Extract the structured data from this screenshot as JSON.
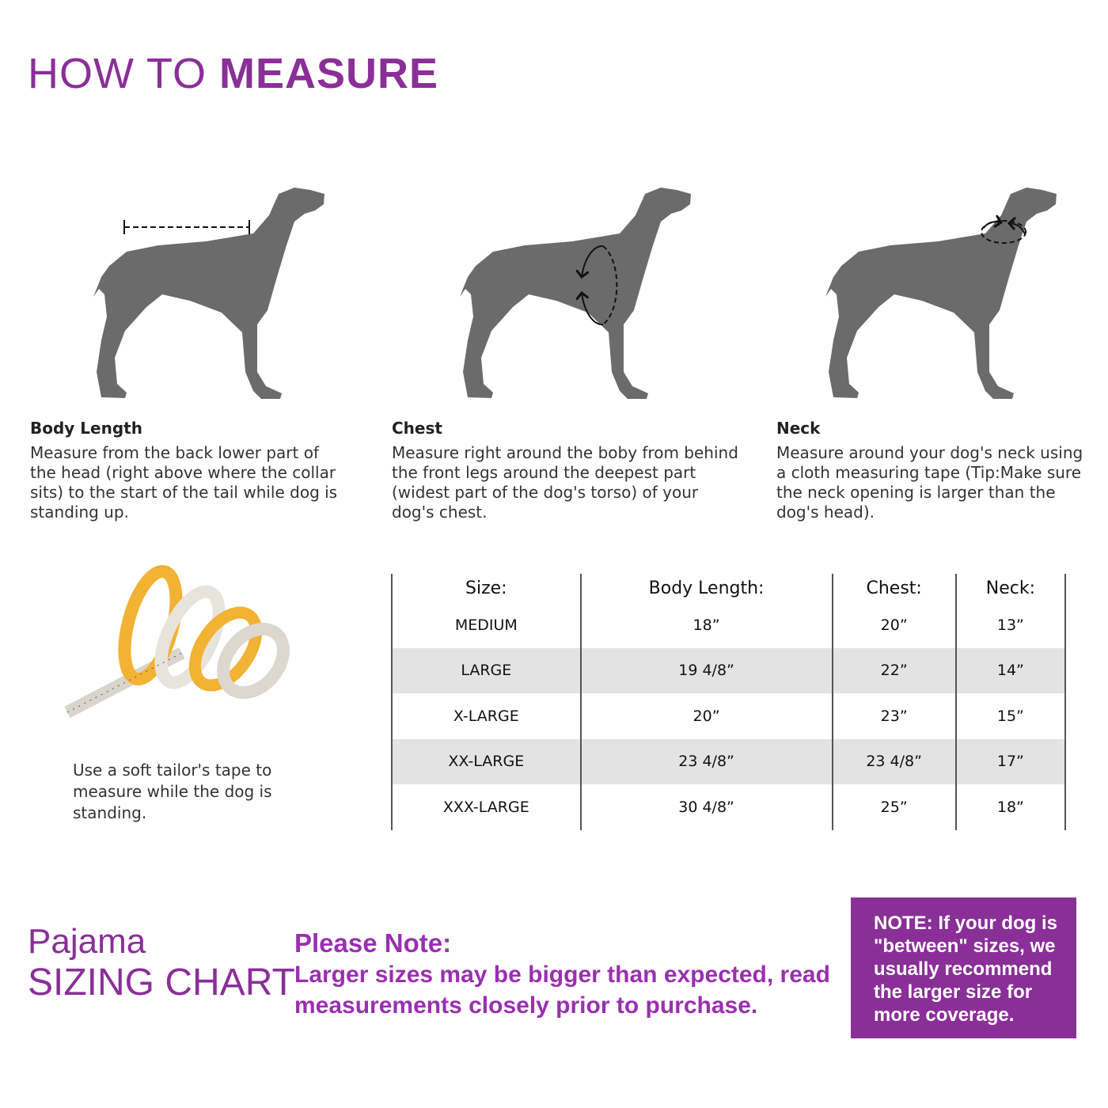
{
  "header": {
    "title_light": "HOW TO ",
    "title_bold": "MEASURE"
  },
  "colors": {
    "brand_purple": "#8a2f98",
    "dog_gray": "#6b6b6b",
    "row_shade": "#e3e3e3"
  },
  "measurements": [
    {
      "label": "Body Length",
      "icon": "dog-body-length-icon",
      "text": "Measure from the back lower part of the head (right above where the collar sits) to the start of the tail while dog is standing up."
    },
    {
      "label": "Chest",
      "icon": "dog-chest-icon",
      "text": "Measure right around the boby from behind the front legs around the deepest part (widest part of the dog's torso) of your dog's chest."
    },
    {
      "label": "Neck",
      "icon": "dog-neck-icon",
      "text": "Measure around your dog's neck using a cloth measuring tape (Tip:Make sure the neck opening is larger than the dog's head)."
    }
  ],
  "tape": {
    "icon": "measuring-tape-icon",
    "caption": "Use a soft tailor's tape to measure while the dog is standing."
  },
  "size_table": {
    "headers": [
      "Size:",
      "Body Length:",
      "Chest:",
      "Neck:"
    ],
    "rows": [
      [
        "MEDIUM",
        "18”",
        "20”",
        "13”"
      ],
      [
        "LARGE",
        "19 4/8”",
        "22”",
        "14”"
      ],
      [
        "X-LARGE",
        "20”",
        "23”",
        "15”"
      ],
      [
        "XX-LARGE",
        "23 4/8”",
        "23 4/8”",
        "17”"
      ],
      [
        "XXX-LARGE",
        "30 4/8”",
        "25”",
        "18”"
      ]
    ]
  },
  "footer": {
    "pajama_line1": "Pajama",
    "pajama_line2": "SIZING CHART",
    "please_heading": "Please Note:",
    "please_body": "Larger sizes may be bigger than expected, read measurements closely prior to purchase.",
    "note_box": "NOTE: If your dog is \"between\" sizes, we usually recommend the larger size for more coverage."
  }
}
